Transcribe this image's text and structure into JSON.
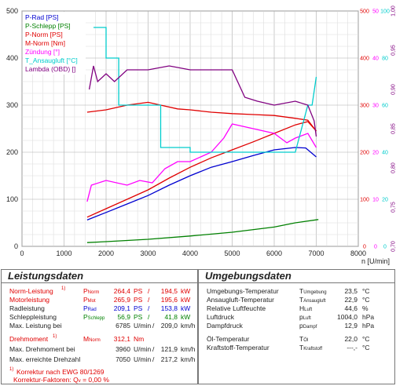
{
  "chart_data": {
    "type": "line",
    "x_axis": {
      "label": "n [U/min]",
      "range": [
        0,
        8000
      ],
      "ticks": [
        0,
        1000,
        2000,
        3000,
        4000,
        5000,
        6000,
        7000,
        8000
      ]
    },
    "left_axis": {
      "range": [
        0,
        500
      ],
      "ticks": [
        0,
        100,
        200,
        300,
        400,
        500
      ]
    },
    "right_axes": [
      {
        "color": "#e00000",
        "range": [
          0,
          500
        ],
        "ticks": [
          0,
          100,
          200,
          300,
          400,
          500
        ]
      },
      {
        "color": "#ff00ff",
        "range": [
          0,
          50
        ],
        "ticks": [
          0,
          10,
          20,
          30,
          40,
          50
        ]
      },
      {
        "color": "#00cccc",
        "range": [
          0,
          100
        ],
        "ticks": [
          0,
          20,
          40,
          60,
          80,
          100
        ]
      },
      {
        "color": "#800080",
        "range": [
          0.7,
          1.0
        ],
        "ticks": [
          "0,70",
          "0,75",
          "0,80",
          "0,85",
          "0,90",
          "0,95",
          "1,00"
        ]
      }
    ],
    "legend": [
      "P-Rad [PS]",
      "P-Schlepp [PS]",
      "P-Norm [PS]",
      "M-Norm [Nm]",
      "Zündung [°]",
      "T_Ansaugluft [°C]",
      "Lambda (OBD) []"
    ],
    "series": [
      {
        "name": "P-Rad [PS]",
        "color": "#0000d0",
        "points": [
          [
            1550,
            56
          ],
          [
            2000,
            72
          ],
          [
            2500,
            90
          ],
          [
            3000,
            108
          ],
          [
            3500,
            130
          ],
          [
            4000,
            150
          ],
          [
            4500,
            168
          ],
          [
            5000,
            180
          ],
          [
            5500,
            193
          ],
          [
            6000,
            205
          ],
          [
            6500,
            210
          ],
          [
            6750,
            209
          ],
          [
            7000,
            190
          ]
        ]
      },
      {
        "name": "P-Schlepp [PS]",
        "color": "#008000",
        "points": [
          [
            1550,
            8
          ],
          [
            2000,
            10
          ],
          [
            3000,
            15
          ],
          [
            4000,
            22
          ],
          [
            5000,
            30
          ],
          [
            6000,
            41
          ],
          [
            6500,
            50
          ],
          [
            7050,
            57
          ]
        ]
      },
      {
        "name": "P-Norm [PS]",
        "color": "#e00000",
        "points": [
          [
            1550,
            62
          ],
          [
            2000,
            80
          ],
          [
            2500,
            100
          ],
          [
            3000,
            120
          ],
          [
            3500,
            145
          ],
          [
            4000,
            168
          ],
          [
            4500,
            188
          ],
          [
            5000,
            205
          ],
          [
            5500,
            222
          ],
          [
            6000,
            240
          ],
          [
            6500,
            258
          ],
          [
            6800,
            265
          ],
          [
            7000,
            245
          ]
        ]
      },
      {
        "name": "M-Norm [Nm]",
        "color": "#e00000",
        "points": [
          [
            1550,
            285
          ],
          [
            2000,
            290
          ],
          [
            2500,
            300
          ],
          [
            3000,
            306
          ],
          [
            3300,
            300
          ],
          [
            3700,
            292
          ],
          [
            4000,
            290
          ],
          [
            4500,
            285
          ],
          [
            5000,
            282
          ],
          [
            5500,
            280
          ],
          [
            6000,
            278
          ],
          [
            6500,
            272
          ],
          [
            6800,
            268
          ],
          [
            7000,
            245
          ]
        ]
      },
      {
        "name": "Zündung [°]",
        "color": "#ff00ff",
        "points": [
          [
            1550,
            9.5
          ],
          [
            1650,
            13
          ],
          [
            2000,
            14
          ],
          [
            2500,
            13
          ],
          [
            2800,
            14
          ],
          [
            3100,
            13.5
          ],
          [
            3400,
            16.5
          ],
          [
            3700,
            18
          ],
          [
            4000,
            18
          ],
          [
            4500,
            20
          ],
          [
            4800,
            23
          ],
          [
            5000,
            26
          ],
          [
            5500,
            25
          ],
          [
            6000,
            24
          ],
          [
            6300,
            22
          ],
          [
            6500,
            23
          ],
          [
            6800,
            24
          ],
          [
            7000,
            21
          ]
        ]
      },
      {
        "name": "T_Ansaugluft [°C]",
        "color": "#00cccc",
        "points": [
          [
            1700,
            93
          ],
          [
            2000,
            93
          ],
          [
            2000,
            80
          ],
          [
            2300,
            80
          ],
          [
            2300,
            60
          ],
          [
            2700,
            60
          ],
          [
            3300,
            60
          ],
          [
            3300,
            50
          ],
          [
            3300,
            42
          ],
          [
            4000,
            42
          ],
          [
            4000,
            40
          ],
          [
            6500,
            40
          ],
          [
            6800,
            60
          ],
          [
            6900,
            60
          ],
          [
            7000,
            72
          ]
        ]
      },
      {
        "name": "Lambda (OBD) []",
        "color": "#800080",
        "points": [
          [
            1600,
            0.9
          ],
          [
            1700,
            0.93
          ],
          [
            1800,
            0.91
          ],
          [
            2000,
            0.92
          ],
          [
            2200,
            0.91
          ],
          [
            2500,
            0.925
          ],
          [
            3000,
            0.925
          ],
          [
            3500,
            0.93
          ],
          [
            4000,
            0.925
          ],
          [
            4500,
            0.925
          ],
          [
            5000,
            0.925
          ],
          [
            5300,
            0.89
          ],
          [
            5600,
            0.885
          ],
          [
            6000,
            0.88
          ],
          [
            6500,
            0.885
          ],
          [
            6800,
            0.88
          ],
          [
            6950,
            0.86
          ],
          [
            7000,
            0.84
          ]
        ]
      }
    ]
  },
  "leistungsdaten": {
    "title": "Leistungsdaten",
    "norm_label": "Norm-Leistung",
    "sup1": "1)",
    "p": "P",
    "sub_norm": "Norm",
    "norm_ps": "264,4",
    "norm_kw": "194,5",
    "motor_label": "Motorleistung",
    "sub_mot": "Mot",
    "motor_ps": "265,9",
    "motor_kw": "195,6",
    "rad_label": "Radleistung",
    "sub_rad": "Rad",
    "rad_ps": "209,1",
    "rad_kw": "153,8",
    "schlepp_label": "Schleppleistung",
    "sub_schlepp": "Schlepp",
    "schlepp_ps": "56,9",
    "schlepp_kw": "41,8",
    "unit_ps": "PS",
    "unit_kw": "kW",
    "maxleist_label": "Max. Leistung bei",
    "maxleist_rpm": "6785",
    "maxleist_speed": "209,0",
    "unit_rpm": "U/min",
    "unit_kmh": "km/h",
    "dm_label": "Drehmoment",
    "m": "M",
    "dm_val": "312,1",
    "unit_nm": "Nm",
    "maxdm_label": "Max. Drehmoment bei",
    "maxdm_rpm": "3960",
    "maxdm_speed": "121,9",
    "maxdz_label": "Max. erreichte Drehzahl",
    "maxdz_rpm": "7050",
    "maxdz_speed": "217,2",
    "korrektur": "Korrektur nach EWG 80/1269",
    "faktoren_label": "Korrektur-Faktoren:",
    "q": "Q",
    "sub_v": "v",
    "faktoren_val": "0,00 %",
    "slash": "/",
    "equals": "="
  },
  "umgebungsdaten": {
    "title": "Umgebungsdaten",
    "rows": [
      {
        "label": "Umgebungs-Temperatur",
        "sym": "T",
        "sub": "Umgebung",
        "value": "23,5",
        "unit": "°C"
      },
      {
        "label": "Ansaugluft-Temperatur",
        "sym": "T",
        "sub": "Ansaugluft",
        "value": "22,9",
        "unit": "°C"
      },
      {
        "label": "Relative Luftfeuchte",
        "sym": "H",
        "sub": "Luft",
        "value": "44,6",
        "unit": "%"
      },
      {
        "label": "Luftdruck",
        "sym": "p",
        "sub": "Luft",
        "value": "1004,0",
        "unit": "hPa"
      },
      {
        "label": "Dampfdruck",
        "sym": "p",
        "sub": "Dampf",
        "value": "12,9",
        "unit": "hPa"
      },
      {
        "label": "Öl-Temperatur",
        "sym": "T",
        "sub": "Öl",
        "value": "22,0",
        "unit": "°C"
      },
      {
        "label": "Kraftstoff-Temperatur",
        "sym": "T",
        "sub": "Kraftstoff",
        "value": "---,-",
        "unit": "°C"
      }
    ]
  }
}
